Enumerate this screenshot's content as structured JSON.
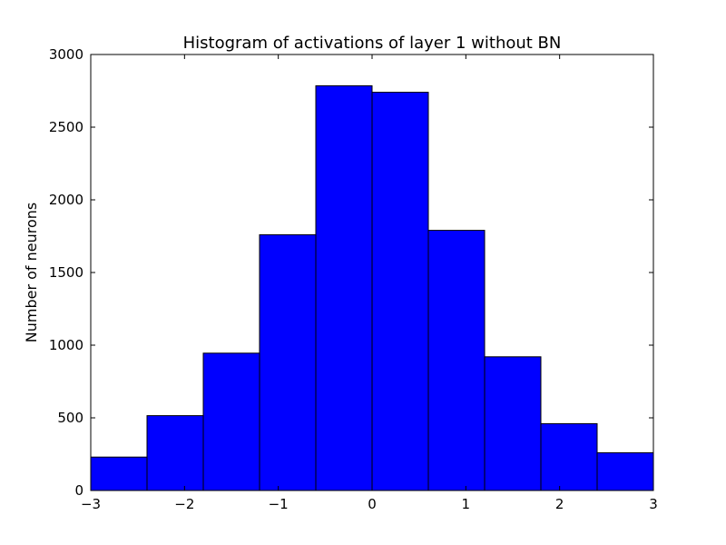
{
  "chart_data": {
    "type": "bar",
    "title": "Histogram of activations of layer 1  without BN",
    "xlabel": "",
    "ylabel": "Number of neurons",
    "bin_edges": [
      -3,
      -2.4,
      -1.8,
      -1.2,
      -0.6,
      0,
      0.6,
      1.2,
      1.8,
      2.4,
      3
    ],
    "values": [
      230,
      515,
      945,
      1760,
      2785,
      2740,
      1790,
      920,
      460,
      260
    ],
    "xlim": [
      -3,
      3
    ],
    "ylim": [
      0,
      3000
    ],
    "xticks": [
      -3,
      -2,
      -1,
      0,
      1,
      2,
      3
    ],
    "xtick_labels": [
      "−3",
      "−2",
      "−1",
      "0",
      "1",
      "2",
      "3"
    ],
    "yticks": [
      0,
      500,
      1000,
      1500,
      2000,
      2500,
      3000
    ],
    "ytick_labels": [
      "0",
      "500",
      "1000",
      "1500",
      "2000",
      "2500",
      "3000"
    ],
    "bar_color": "#0000ff",
    "edge_color": "#000000",
    "grid": false,
    "legend": "none"
  }
}
